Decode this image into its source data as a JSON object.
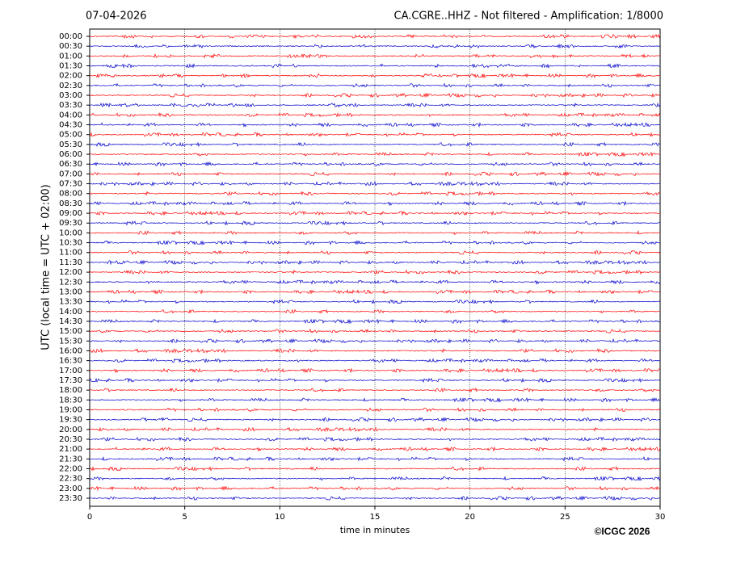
{
  "chart_data": {
    "type": "helicorder",
    "title_left": "07-04-2026",
    "title": "CA.CGRE..HHZ - Not filtered - Amplification: 1/8000",
    "ylabel": "UTC (local time = UTC + 02:00)",
    "xlabel": "time in minutes",
    "copyright": "©ICGC 2026",
    "categories": [
      "00:00",
      "00:30",
      "01:00",
      "01:30",
      "02:00",
      "02:30",
      "03:00",
      "03:30",
      "04:00",
      "04:30",
      "05:00",
      "05:30",
      "06:00",
      "06:30",
      "07:00",
      "07:30",
      "08:00",
      "08:30",
      "09:00",
      "09:30",
      "10:00",
      "10:30",
      "11:00",
      "11:30",
      "12:00",
      "12:30",
      "13:00",
      "13:30",
      "14:00",
      "14:30",
      "15:00",
      "15:30",
      "16:00",
      "16:30",
      "17:00",
      "17:30",
      "18:00",
      "18:30",
      "19:00",
      "19:30",
      "20:00",
      "20:30",
      "21:00",
      "21:30",
      "22:00",
      "22:30",
      "23:00",
      "23:30"
    ],
    "colors": [
      "#ff0000",
      "#0000cc"
    ],
    "xlim": [
      0,
      30
    ],
    "xticks": [
      0,
      5,
      10,
      15,
      20,
      25,
      30
    ],
    "grid": true
  }
}
